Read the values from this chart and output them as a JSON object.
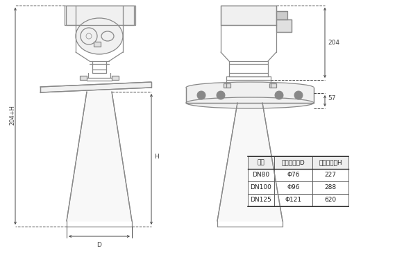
{
  "bg_color": "#ffffff",
  "line_color": "#888888",
  "dim_color": "#444444",
  "fill_light": "#f0f0f0",
  "fill_mid": "#e0e0e0",
  "fill_dark": "#cccccc",
  "table_headers": [
    "法兰",
    "喇叭口直径D",
    "喇叭口高度H"
  ],
  "table_rows": [
    [
      "DN80",
      "Φ76",
      "227"
    ],
    [
      "DN100",
      "Φ96",
      "288"
    ],
    [
      "DN125",
      "Φ121",
      "620"
    ]
  ],
  "dim_label_204": "204",
  "dim_label_57": "57",
  "dim_label_H": "H",
  "dim_label_204H": "204+H",
  "dim_label_D": "D"
}
